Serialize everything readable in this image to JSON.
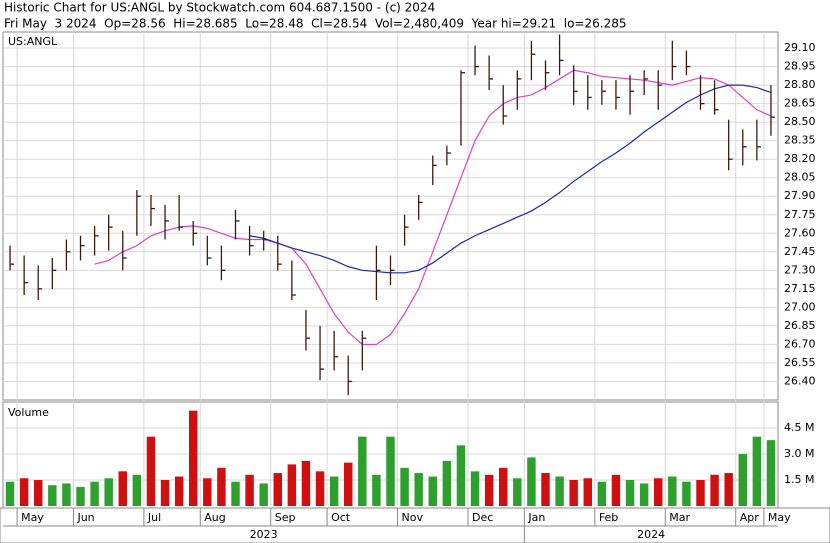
{
  "chart_data": {
    "type": "hlc",
    "title": "Historic Chart for US:ANGL by Stockwatch.com 604.687.1500 - (c) 2024",
    "subtitle": "Fri May  3 2024  Op=28.56  Hi=28.685  Lo=28.48  Cl=28.54  Vol=2,480,409  Year hi=29.21  lo=26.285",
    "symbol": "US:ANGL",
    "categories": [
      null,
      "May",
      null,
      null,
      null,
      "Jun",
      null,
      null,
      null,
      null,
      "Jul",
      null,
      null,
      null,
      "Aug",
      null,
      null,
      null,
      null,
      "Sep",
      null,
      null,
      null,
      "Oct",
      null,
      null,
      null,
      null,
      "Nov",
      null,
      null,
      null,
      null,
      "Dec",
      null,
      null,
      null,
      "Jan",
      null,
      null,
      null,
      null,
      "Feb",
      null,
      null,
      null,
      null,
      "Mar",
      null,
      null,
      null,
      null,
      "Apr",
      null,
      "May"
    ],
    "years": [
      "2023",
      "2024"
    ],
    "high": [
      27.5,
      27.42,
      27.34,
      27.4,
      27.55,
      27.58,
      27.66,
      27.75,
      27.62,
      27.95,
      27.91,
      27.83,
      27.91,
      27.7,
      27.58,
      27.5,
      27.79,
      27.66,
      27.62,
      27.58,
      27.38,
      26.98,
      26.85,
      26.81,
      26.61,
      26.81,
      27.5,
      27.42,
      27.75,
      27.91,
      28.23,
      28.31,
      28.92,
      29.12,
      29.04,
      28.8,
      28.92,
      29.16,
      29.0,
      29.21,
      28.96,
      28.88,
      28.84,
      28.84,
      28.88,
      28.92,
      28.92,
      29.16,
      29.08,
      28.88,
      28.84,
      28.52,
      28.44,
      28.52,
      28.8
    ],
    "low": [
      27.3,
      27.1,
      27.06,
      27.15,
      27.3,
      27.38,
      27.42,
      27.46,
      27.3,
      27.58,
      27.66,
      27.55,
      27.62,
      27.5,
      27.34,
      27.22,
      27.55,
      27.42,
      27.46,
      27.3,
      27.06,
      26.65,
      26.41,
      26.49,
      26.29,
      26.49,
      27.06,
      27.18,
      27.5,
      27.71,
      27.99,
      28.15,
      28.31,
      28.88,
      28.76,
      28.48,
      28.6,
      28.84,
      28.76,
      28.88,
      28.64,
      28.6,
      28.64,
      28.6,
      28.56,
      28.72,
      28.6,
      28.84,
      28.88,
      28.6,
      28.56,
      28.11,
      28.15,
      28.19,
      28.39
    ],
    "close": [
      27.35,
      27.2,
      27.15,
      27.3,
      27.45,
      27.5,
      27.58,
      27.65,
      27.4,
      27.9,
      27.8,
      27.7,
      27.65,
      27.6,
      27.4,
      27.3,
      27.7,
      27.5,
      27.55,
      27.35,
      27.1,
      26.75,
      26.5,
      26.6,
      26.4,
      26.75,
      27.3,
      27.3,
      27.65,
      27.85,
      28.15,
      28.25,
      28.9,
      28.95,
      28.85,
      28.55,
      28.85,
      29.05,
      28.9,
      29.0,
      28.75,
      28.7,
      28.75,
      28.7,
      28.75,
      28.85,
      28.8,
      28.95,
      28.95,
      28.65,
      28.6,
      28.2,
      28.3,
      28.3,
      28.54
    ],
    "bar_color": "#3a1a10",
    "series": [
      {
        "name": "MA20",
        "color": "#e040c0",
        "values": [
          null,
          null,
          null,
          null,
          null,
          null,
          27.35,
          27.38,
          27.45,
          27.5,
          27.58,
          27.62,
          27.65,
          27.66,
          27.64,
          27.6,
          27.56,
          27.55,
          27.55,
          27.52,
          27.48,
          27.35,
          27.15,
          26.95,
          26.8,
          26.7,
          26.7,
          26.78,
          26.95,
          27.15,
          27.45,
          27.75,
          28.05,
          28.35,
          28.55,
          28.65,
          28.7,
          28.72,
          28.78,
          28.85,
          28.92,
          28.9,
          28.87,
          28.86,
          28.85,
          28.84,
          28.82,
          28.8,
          28.83,
          28.86,
          28.85,
          28.8,
          28.7,
          28.6,
          28.55
        ]
      },
      {
        "name": "MA50",
        "color": "#1a2aa0",
        "values": [
          null,
          null,
          null,
          null,
          null,
          null,
          null,
          null,
          null,
          null,
          null,
          null,
          null,
          null,
          null,
          null,
          null,
          27.58,
          27.56,
          27.52,
          27.48,
          27.45,
          27.42,
          27.38,
          27.33,
          27.3,
          27.29,
          27.28,
          27.28,
          27.3,
          27.36,
          27.44,
          27.52,
          27.58,
          27.63,
          27.68,
          27.73,
          27.78,
          27.85,
          27.93,
          28.02,
          28.1,
          28.18,
          28.25,
          28.33,
          28.42,
          28.5,
          28.58,
          28.66,
          28.72,
          28.77,
          28.8,
          28.8,
          28.78,
          28.74
        ]
      }
    ],
    "ylim": [
      26.25,
      29.23
    ],
    "yticks": [
      {
        "value": 26.4,
        "label": "26.40"
      },
      26.55,
      {
        "value": 26.7,
        "label": "26.70"
      },
      26.85,
      {
        "value": 27.0,
        "label": "27.00"
      },
      27.15,
      {
        "value": 27.3,
        "label": "27.30"
      },
      27.45,
      {
        "value": 27.6,
        "label": "27.60"
      },
      27.75,
      {
        "value": 27.9,
        "label": "27.90"
      },
      28.05,
      {
        "value": 28.2,
        "label": "28.20"
      },
      28.35,
      {
        "value": 28.5,
        "label": "28.50"
      },
      28.65,
      {
        "value": 28.8,
        "label": "28.80"
      },
      28.95,
      {
        "value": 29.1,
        "label": "29.10"
      }
    ],
    "grid": true,
    "volume": {
      "title": "Volume",
      "up_color": "#2ea02e",
      "down_color": "#d01010",
      "values": [
        1.4,
        1.6,
        1.5,
        1.2,
        1.3,
        1.1,
        1.4,
        1.6,
        2.0,
        1.8,
        4.0,
        1.5,
        1.7,
        5.5,
        1.6,
        2.2,
        1.4,
        1.8,
        1.3,
        1.9,
        2.4,
        2.6,
        2.0,
        1.7,
        2.5,
        4.0,
        1.8,
        4.0,
        2.2,
        1.9,
        1.7,
        2.6,
        3.5,
        2.0,
        1.8,
        2.2,
        1.6,
        2.8,
        1.9,
        1.7,
        1.5,
        1.6,
        1.4,
        1.8,
        1.5,
        1.3,
        1.6,
        1.7,
        1.4,
        1.5,
        1.8,
        1.9,
        3.0,
        4.0,
        3.8
      ],
      "ylim": [
        0,
        6
      ],
      "yticks": [
        {
          "value": 1.5,
          "label": "1.5 M"
        },
        {
          "value": 3,
          "label": "3.0 M"
        },
        {
          "value": 4.5,
          "label": "4.5 M"
        }
      ]
    }
  }
}
